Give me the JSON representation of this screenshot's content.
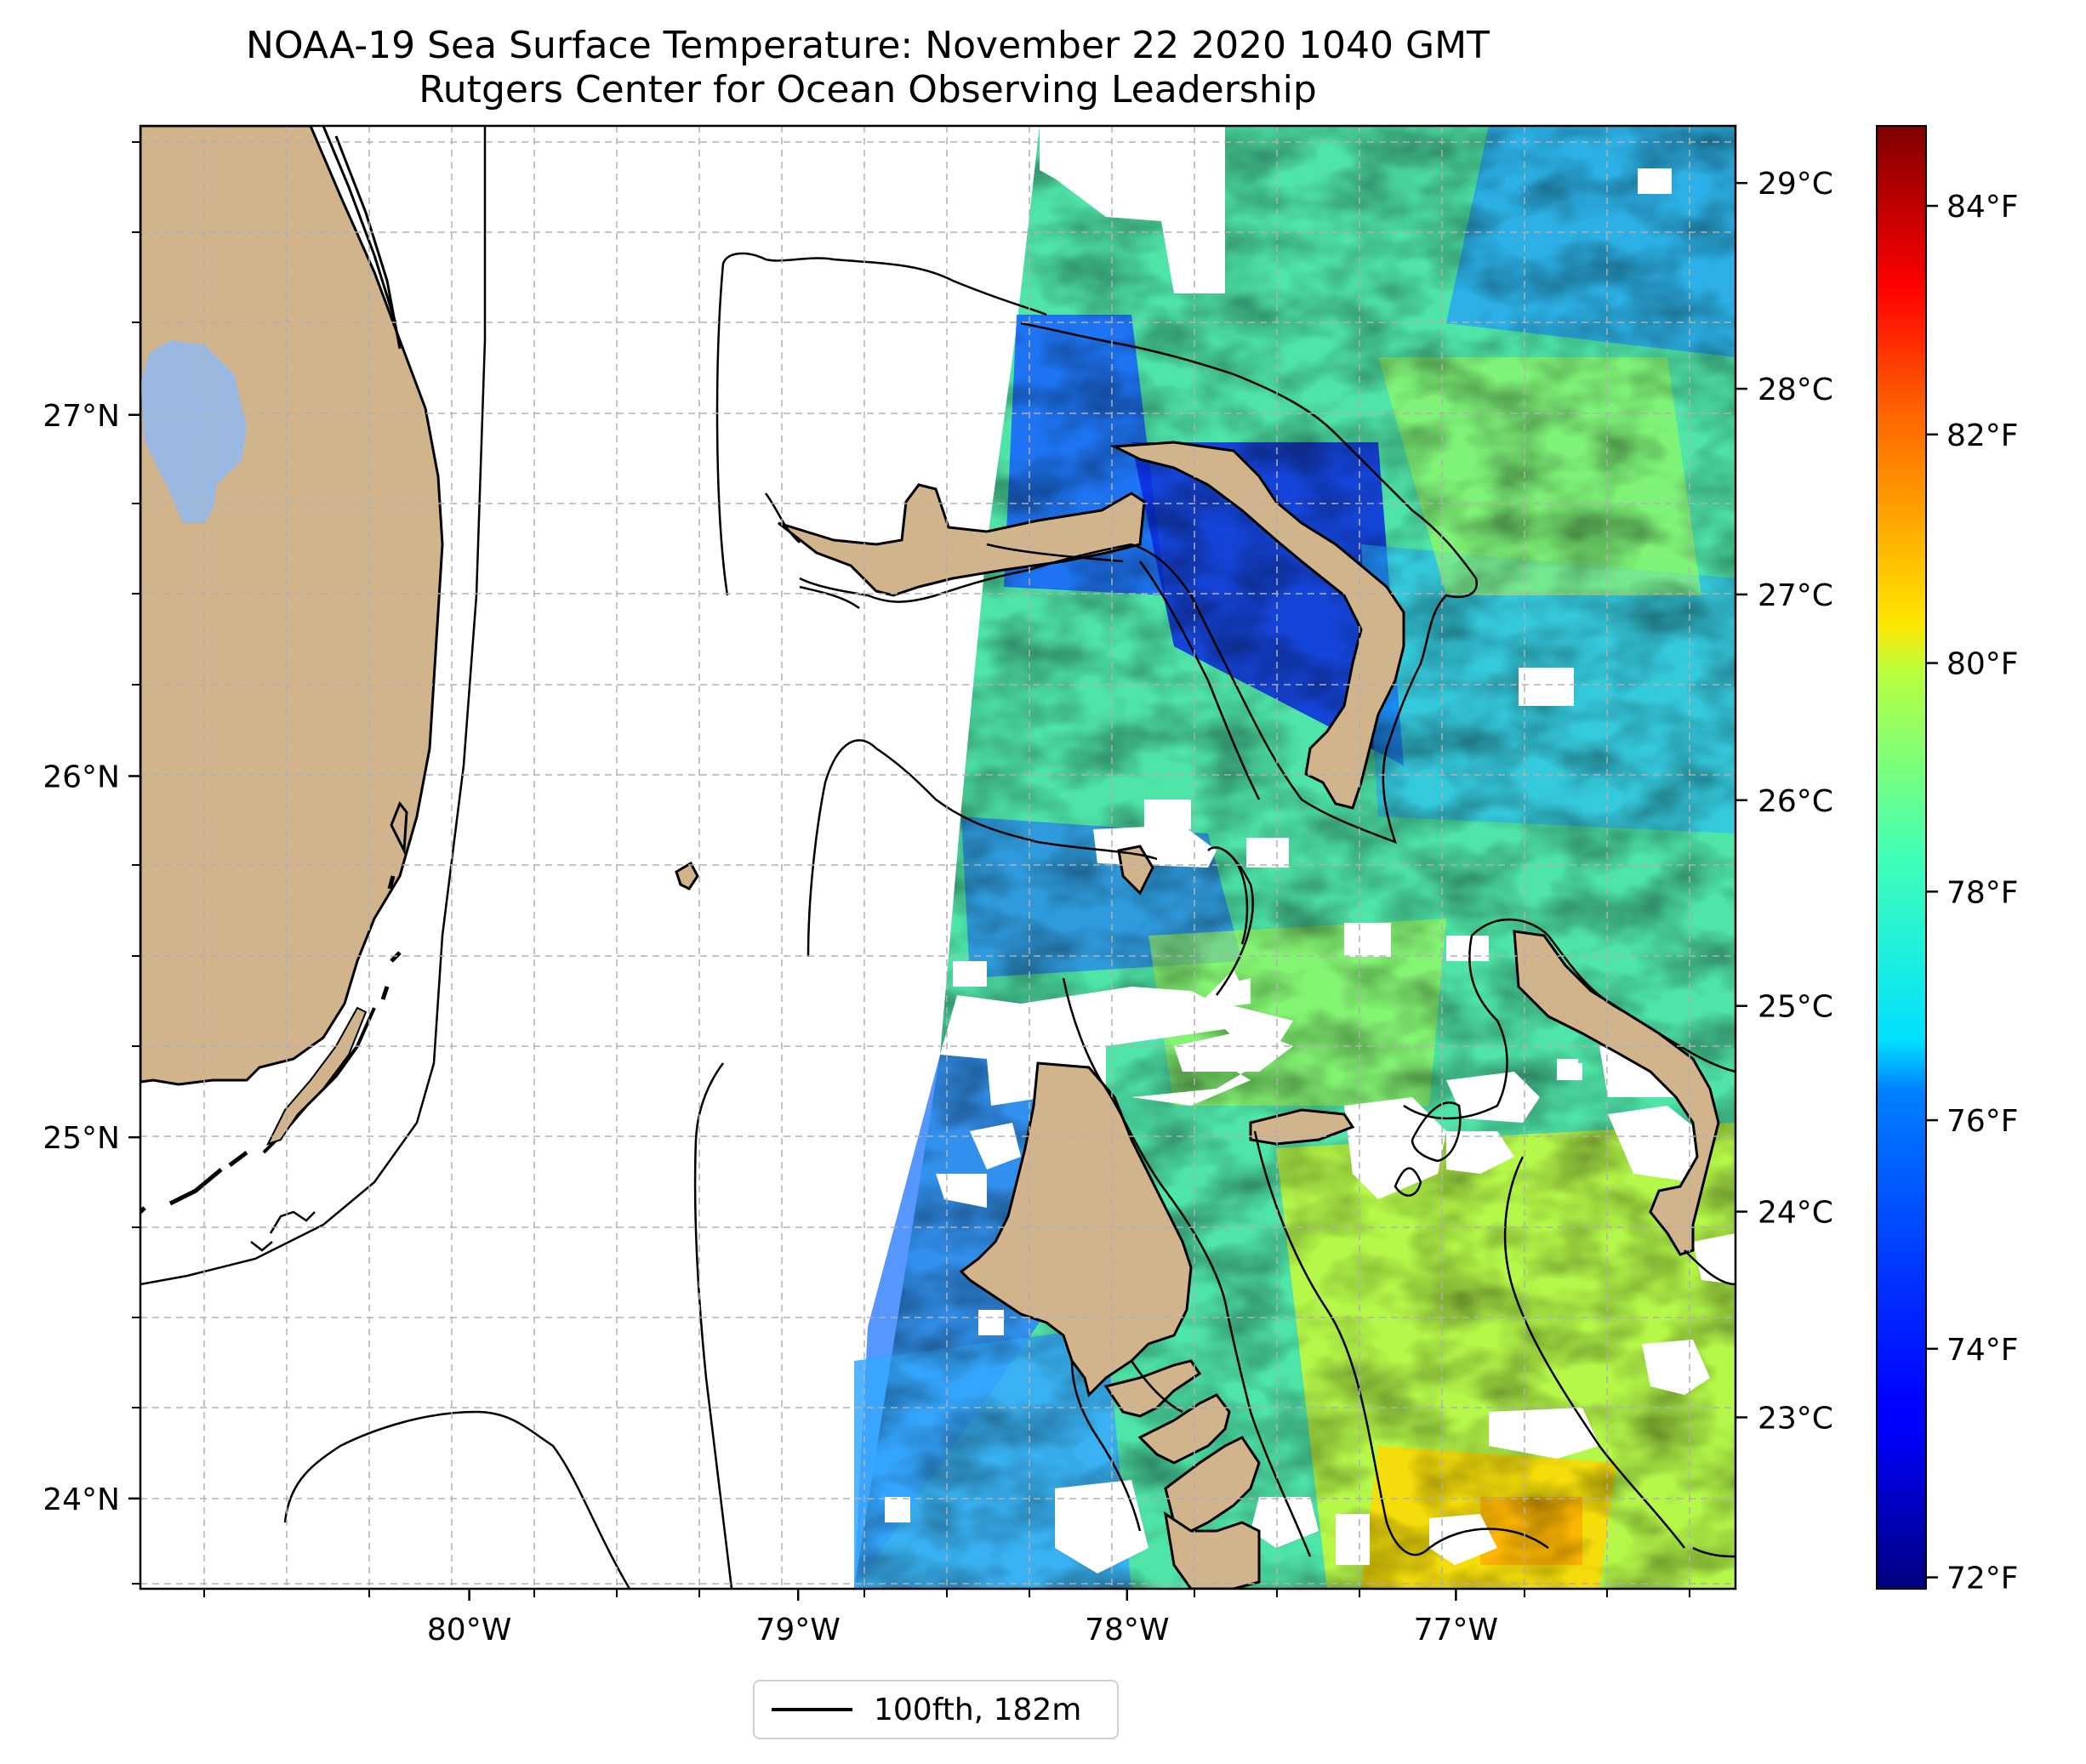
{
  "title": "NOAA-19 Sea Surface Temperature: November 22 2020 1040 GMT",
  "subtitle": "Rutgers Center for Ocean Observing Leadership",
  "map": {
    "lon_range": [
      -81.0,
      -76.15
    ],
    "lat_range": [
      23.75,
      27.8
    ],
    "lon_ticks": [
      {
        "value": -80,
        "label": "80°W"
      },
      {
        "value": -79,
        "label": "79°W"
      },
      {
        "value": -78,
        "label": "78°W"
      },
      {
        "value": -77,
        "label": "77°W"
      }
    ],
    "lat_ticks": [
      {
        "value": 27,
        "label": "27°N"
      },
      {
        "value": 26,
        "label": "26°N"
      },
      {
        "value": 25,
        "label": "25°N"
      },
      {
        "value": 24,
        "label": "24°N"
      }
    ],
    "colors": {
      "land": "#d2b48c",
      "lake": "#9bb8e0",
      "grid": "#b0b0b0",
      "no_data": "#ffffff"
    }
  },
  "legend": {
    "label": "100fth, 182m"
  },
  "colorbar": {
    "colormap": "jet",
    "range_f": [
      71.9,
      84.7
    ],
    "celsius_ticks": [
      {
        "value": 23,
        "label": "23°C"
      },
      {
        "value": 24,
        "label": "24°C"
      },
      {
        "value": 25,
        "label": "25°C"
      },
      {
        "value": 26,
        "label": "26°C"
      },
      {
        "value": 27,
        "label": "27°C"
      },
      {
        "value": 28,
        "label": "28°C"
      },
      {
        "value": 29,
        "label": "29°C"
      }
    ],
    "fahrenheit_ticks": [
      {
        "value": 72,
        "label": "72°F"
      },
      {
        "value": 74,
        "label": "74°F"
      },
      {
        "value": 76,
        "label": "76°F"
      },
      {
        "value": 78,
        "label": "78°F"
      },
      {
        "value": 80,
        "label": "80°F"
      },
      {
        "value": 82,
        "label": "82°F"
      },
      {
        "value": 84,
        "label": "84°F"
      }
    ]
  }
}
